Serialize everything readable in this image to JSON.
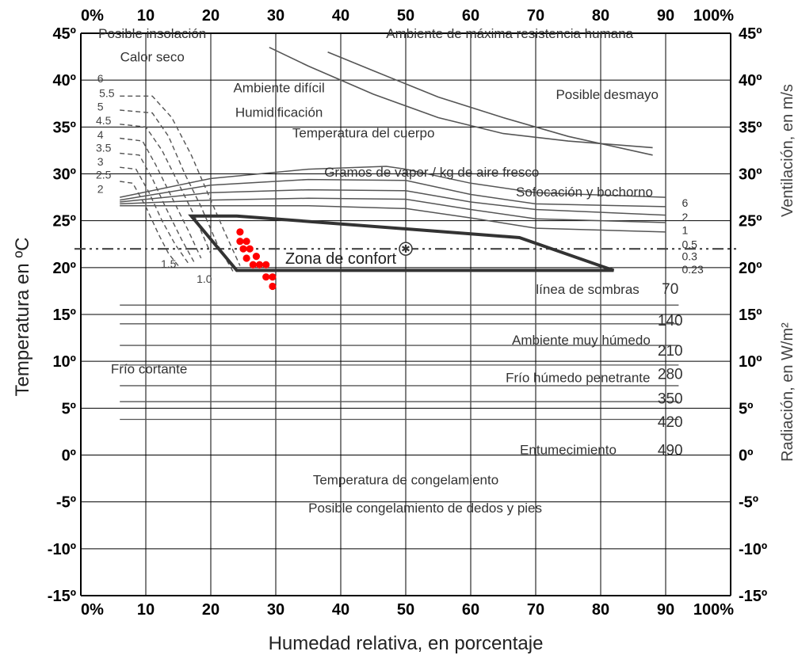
{
  "chart_data": {
    "type": "line",
    "title": "",
    "xlabel": "Humedad relativa, en porcentaje",
    "ylabel": "Temperatura en ºC",
    "y2label_top": "Ventilación, en m/s",
    "y2label_bottom": "Radiación, en W/m²",
    "xlim": [
      0,
      100
    ],
    "ylim": [
      -15,
      45
    ],
    "grid": true,
    "x_ticks": [
      "0%",
      "10",
      "20",
      "30",
      "40",
      "50",
      "60",
      "70",
      "80",
      "90",
      "100%"
    ],
    "y_ticks_left": [
      "-15º",
      "-10º",
      "-5º",
      "0º",
      "5º",
      "10º",
      "15º",
      "20º",
      "25º",
      "30º",
      "35º",
      "40º",
      "45º"
    ],
    "y_ticks_right": [
      "-15º",
      "-10º",
      "-5º",
      "0º",
      "5º",
      "10º",
      "15º",
      "20º",
      "25º",
      "30º",
      "35º",
      "40º",
      "45º"
    ],
    "zones": [
      {
        "label": "Posible insolación",
        "x": 11,
        "y": 45
      },
      {
        "label": "Ambiente de máxima resistencia humana",
        "x": 66,
        "y": 45
      },
      {
        "label": "Calor seco",
        "x": 11,
        "y": 42.5
      },
      {
        "label": "Ambiente difícil",
        "x": 30.5,
        "y": 39.2
      },
      {
        "label": "Posible desmayo",
        "x": 81,
        "y": 38.5
      },
      {
        "label": "Humidificación",
        "x": 30.5,
        "y": 36.6
      },
      {
        "label": "Temperatura del cuerpo",
        "x": 43.5,
        "y": 34.4
      },
      {
        "label": "Gramos de vapor / kg de aire fresco",
        "x": 54,
        "y": 30.2
      },
      {
        "label": "Sofocación y bochorno",
        "x": 77.5,
        "y": 28.1
      },
      {
        "label": "línea de sombras",
        "x": 78,
        "y": 17.7
      },
      {
        "label": "Ambiente muy húmedo",
        "x": 77,
        "y": 12.3
      },
      {
        "label": "Frío cortante",
        "x": 10.5,
        "y": 9.2
      },
      {
        "label": "Frío húmedo penetrante",
        "x": 76.5,
        "y": 8.3
      },
      {
        "label": "Entumecimiento",
        "x": 75,
        "y": 0.6
      },
      {
        "label": "Temperatura de congelamiento",
        "x": 50,
        "y": -2.6
      },
      {
        "label": "Posible congelamiento de dedos y pies",
        "x": 53,
        "y": -5.6
      }
    ],
    "comfort_zone": {
      "label": "Zona de confort",
      "polygon": [
        [
          17,
          25.5
        ],
        [
          24,
          19.7
        ],
        [
          82,
          19.7
        ],
        [
          67.5,
          23.2
        ],
        [
          60,
          23.6
        ],
        [
          24,
          25.5
        ]
      ],
      "marker": [
        50,
        22
      ]
    },
    "shade_line_y": 22,
    "ventilation_labels": [
      {
        "label": "6",
        "y": 26.9
      },
      {
        "label": "2",
        "y": 25.4
      },
      {
        "label": "1",
        "y": 24.0
      },
      {
        "label": "0.5",
        "y": 22.5
      },
      {
        "label": "0.3",
        "y": 21.2
      },
      {
        "label": "0.23",
        "y": 19.8
      }
    ],
    "radiation_labels": [
      {
        "label": "70",
        "y": 17.8
      },
      {
        "label": "140",
        "y": 14.4
      },
      {
        "label": "210",
        "y": 11.2
      },
      {
        "label": "280",
        "y": 8.7
      },
      {
        "label": "350",
        "y": 6.1
      },
      {
        "label": "420",
        "y": 3.6
      },
      {
        "label": "490",
        "y": 0.6
      }
    ],
    "humidification_labels": [
      {
        "label": "6",
        "x": 3,
        "y": 40.2
      },
      {
        "label": "5.5",
        "x": 4,
        "y": 38.6
      },
      {
        "label": "5",
        "x": 3,
        "y": 37.2
      },
      {
        "label": "4.5",
        "x": 3.5,
        "y": 35.7
      },
      {
        "label": "4",
        "x": 3,
        "y": 34.2
      },
      {
        "label": "3.5",
        "x": 3.5,
        "y": 32.8
      },
      {
        "label": "3",
        "x": 3,
        "y": 31.3
      },
      {
        "label": "2.5",
        "x": 3.5,
        "y": 29.9
      },
      {
        "label": "2",
        "x": 3,
        "y": 28.4
      },
      {
        "label": "1.5",
        "x": 13.5,
        "y": 20.4
      },
      {
        "label": "1.0",
        "x": 19,
        "y": 18.8
      }
    ],
    "humidification_curves": [
      [
        [
          6,
          38.3
        ],
        [
          11,
          38.3
        ],
        [
          14,
          36
        ],
        [
          17,
          32
        ],
        [
          19.5,
          28
        ],
        [
          22,
          24
        ],
        [
          24.5,
          20.2
        ]
      ],
      [
        [
          6,
          36.8
        ],
        [
          11,
          36.5
        ],
        [
          13.5,
          34
        ],
        [
          16,
          30
        ],
        [
          18.5,
          26.5
        ],
        [
          21,
          22.5
        ],
        [
          23.5,
          19.5
        ]
      ],
      [
        [
          6,
          35.3
        ],
        [
          10,
          35
        ],
        [
          12.5,
          32.5
        ],
        [
          15,
          29
        ],
        [
          17.5,
          25.5
        ],
        [
          20,
          21.5
        ]
      ],
      [
        [
          6,
          33.8
        ],
        [
          9.5,
          33.5
        ],
        [
          11.5,
          31
        ],
        [
          14,
          27.5
        ],
        [
          16.5,
          24
        ],
        [
          18.5,
          21
        ]
      ],
      [
        [
          6,
          32.2
        ],
        [
          9,
          32
        ],
        [
          11,
          29.5
        ],
        [
          13,
          26.5
        ],
        [
          15.5,
          23
        ],
        [
          17.5,
          20.5
        ]
      ],
      [
        [
          6,
          30.7
        ],
        [
          8.5,
          30.5
        ],
        [
          10.5,
          28
        ],
        [
          12.5,
          25
        ],
        [
          14.5,
          22.5
        ],
        [
          16.5,
          20.5
        ]
      ],
      [
        [
          6,
          29.2
        ],
        [
          8,
          29
        ],
        [
          10,
          26.5
        ],
        [
          12,
          23.5
        ],
        [
          13.5,
          21.5
        ],
        [
          15,
          20.2
        ]
      ]
    ],
    "upper_curves": [
      [
        [
          29,
          43.5
        ],
        [
          35,
          41.5
        ],
        [
          45,
          38.5
        ],
        [
          55,
          36
        ],
        [
          65,
          34.3
        ],
        [
          75,
          33.5
        ],
        [
          88,
          32.8
        ]
      ],
      [
        [
          38,
          43
        ],
        [
          45,
          41
        ],
        [
          55,
          38.2
        ],
        [
          65,
          36
        ],
        [
          75,
          34
        ],
        [
          88,
          32
        ]
      ]
    ],
    "ventilation_curves": [
      [
        [
          6,
          27.5
        ],
        [
          20,
          29.5
        ],
        [
          35,
          30.5
        ],
        [
          47,
          30.8
        ],
        [
          50,
          30.5
        ],
        [
          60,
          29
        ],
        [
          70,
          28
        ],
        [
          90,
          27.5
        ]
      ],
      [
        [
          6,
          27.2
        ],
        [
          20,
          28.8
        ],
        [
          35,
          29.4
        ],
        [
          50,
          29.3
        ],
        [
          60,
          27.8
        ],
        [
          70,
          26.8
        ],
        [
          90,
          26.5
        ]
      ],
      [
        [
          6,
          27
        ],
        [
          20,
          28
        ],
        [
          35,
          28.3
        ],
        [
          50,
          28.2
        ],
        [
          60,
          27
        ],
        [
          70,
          26.2
        ],
        [
          90,
          25.6
        ]
      ],
      [
        [
          6,
          26.8
        ],
        [
          20,
          27.2
        ],
        [
          35,
          27.4
        ],
        [
          50,
          27.3
        ],
        [
          60,
          26.2
        ],
        [
          70,
          25.2
        ],
        [
          90,
          24.8
        ]
      ],
      [
        [
          6,
          26.6
        ],
        [
          20,
          26.6
        ],
        [
          35,
          26.6
        ],
        [
          50,
          26.3
        ],
        [
          60,
          25.3
        ],
        [
          70,
          24.2
        ],
        [
          90,
          23.8
        ]
      ]
    ],
    "radiation_lines_y": [
      16,
      14,
      11.7,
      9.6,
      7.4,
      5.7,
      3.8
    ],
    "radiation_lines_x": [
      6,
      92
    ],
    "measured_points": [
      {
        "x": 24.5,
        "y": 23.8
      },
      {
        "x": 24.5,
        "y": 22.8
      },
      {
        "x": 25.5,
        "y": 22.8
      },
      {
        "x": 25,
        "y": 22
      },
      {
        "x": 26,
        "y": 22
      },
      {
        "x": 25.5,
        "y": 21
      },
      {
        "x": 27,
        "y": 21.2
      },
      {
        "x": 26.5,
        "y": 20.3
      },
      {
        "x": 27.5,
        "y": 20.3
      },
      {
        "x": 28.5,
        "y": 20.3
      },
      {
        "x": 28.5,
        "y": 19
      },
      {
        "x": 29.5,
        "y": 19
      },
      {
        "x": 29.5,
        "y": 18
      }
    ],
    "colors": {
      "grid": "#000000",
      "curves": "#555555",
      "comfort": "#333333",
      "points": "#ff0000"
    }
  }
}
